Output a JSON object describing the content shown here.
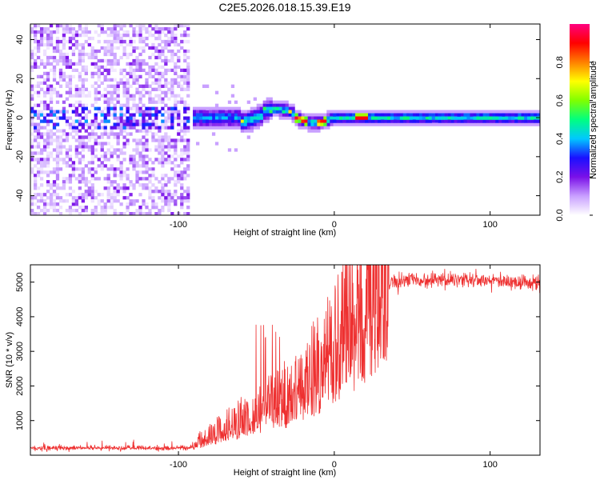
{
  "title": "C2E5.2026.018.15.39.E19",
  "chart_data": [
    {
      "type": "heatmap",
      "title": "C2E5.2026.018.15.39.E19",
      "xlabel": "Height of straight line (km)",
      "ylabel": "Frequency (Hz)",
      "xlim": [
        -195,
        132
      ],
      "ylim": [
        -50,
        48
      ],
      "xticks": [
        -100,
        0,
        100
      ],
      "yticks": [
        -40,
        -20,
        0,
        20,
        40
      ],
      "xtick_labels": [
        "-100",
        "0",
        "100"
      ],
      "ytick_labels": [
        "-40",
        "-20",
        "0",
        "20",
        "40"
      ],
      "signal_band": {
        "center_frequency_hz": 0,
        "noise_region_end_km": -92,
        "onset_km": -90,
        "peak_positions_km": [
          -22,
          -8,
          18
        ]
      },
      "colorbar": {
        "label": "Normalized spectral amplitude",
        "range": [
          0,
          1
        ],
        "ticks": [
          0.0,
          0.2,
          0.4,
          0.6,
          0.8
        ],
        "tick_labels": [
          "0.0",
          "0.2",
          "0.4",
          "0.6",
          "0.8"
        ],
        "colors": [
          "#ffffff",
          "#c9a0ff",
          "#7a10e8",
          "#1a10ff",
          "#00c8ff",
          "#00ff80",
          "#80ff00",
          "#ffff00",
          "#ff8000",
          "#ff0000",
          "#ff0080"
        ]
      }
    },
    {
      "type": "line",
      "xlabel": "Height of straight line (km)",
      "ylabel": "SNR (10 * v/v)",
      "xlim": [
        -195,
        132
      ],
      "ylim": [
        0,
        5500
      ],
      "xticks": [
        -100,
        0,
        100
      ],
      "yticks": [
        1000,
        2000,
        3000,
        4000,
        5000
      ],
      "xtick_labels": [
        "-100",
        "0",
        "100"
      ],
      "ytick_labels": [
        "1000",
        "2000",
        "3000",
        "4000",
        "5000"
      ],
      "series_color": "#ee3030",
      "trend": {
        "x": [
          -195,
          -150,
          -100,
          -90,
          -85,
          -70,
          -55,
          -40,
          -25,
          -15,
          -5,
          5,
          15,
          25,
          30,
          38,
          50,
          70,
          100,
          132
        ],
        "y": [
          200,
          210,
          200,
          230,
          450,
          750,
          1050,
          1350,
          1700,
          2100,
          2600,
          3200,
          3800,
          4400,
          4700,
          5000,
          5050,
          5050,
          5050,
          4980
        ]
      }
    }
  ]
}
